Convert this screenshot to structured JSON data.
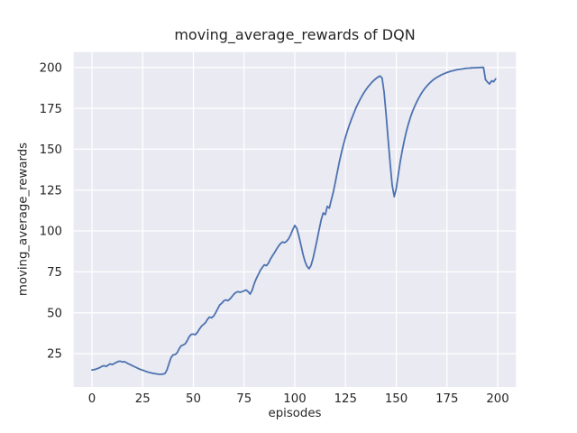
{
  "chart_data": {
    "type": "line",
    "title": "moving_average_rewards of DQN",
    "xlabel": "episodes",
    "ylabel": "moving_average_rewards",
    "xticks": [
      0,
      25,
      50,
      75,
      100,
      125,
      150,
      175,
      200
    ],
    "yticks": [
      25,
      50,
      75,
      100,
      125,
      150,
      175,
      200
    ],
    "xlim": [
      -9,
      209
    ],
    "ylim": [
      4.6,
      209.4
    ],
    "grid": true,
    "legend": "none",
    "colors": {
      "line": "#4C72B0",
      "plot_bg": "#EAEAF2",
      "grid": "#FFFFFF",
      "text": "#262626",
      "figure_bg": "#FFFFFF"
    },
    "series": [
      {
        "name": "DQN moving average reward",
        "points": [
          [
            0,
            15
          ],
          [
            1,
            15.2
          ],
          [
            2,
            15.5
          ],
          [
            3,
            16
          ],
          [
            4,
            16.5
          ],
          [
            5,
            17.3
          ],
          [
            6,
            17.6
          ],
          [
            7,
            17.2
          ],
          [
            8,
            18
          ],
          [
            9,
            18.7
          ],
          [
            10,
            18.3
          ],
          [
            11,
            19
          ],
          [
            12,
            19.6
          ],
          [
            13,
            20.2
          ],
          [
            14,
            20.4
          ],
          [
            15,
            19.9
          ],
          [
            16,
            20.1
          ],
          [
            17,
            19.5
          ],
          [
            18,
            18.8
          ],
          [
            19,
            18.2
          ],
          [
            20,
            17.6
          ],
          [
            21,
            17
          ],
          [
            22,
            16.4
          ],
          [
            23,
            15.8
          ],
          [
            24,
            15.3
          ],
          [
            25,
            14.9
          ],
          [
            26,
            14.4
          ],
          [
            27,
            14
          ],
          [
            28,
            13.6
          ],
          [
            29,
            13.3
          ],
          [
            30,
            13
          ],
          [
            31,
            12.8
          ],
          [
            32,
            12.6
          ],
          [
            33,
            12.4
          ],
          [
            34,
            12.4
          ],
          [
            35,
            12.5
          ],
          [
            36,
            12.8
          ],
          [
            37,
            15
          ],
          [
            38,
            19
          ],
          [
            39,
            22.5
          ],
          [
            40,
            24.3
          ],
          [
            41,
            24.4
          ],
          [
            42,
            25.5
          ],
          [
            43,
            28
          ],
          [
            44,
            29.8
          ],
          [
            45,
            30.3
          ],
          [
            46,
            31
          ],
          [
            47,
            33
          ],
          [
            48,
            35.5
          ],
          [
            49,
            36.8
          ],
          [
            50,
            36.9
          ],
          [
            51,
            36.6
          ],
          [
            52,
            38
          ],
          [
            53,
            40
          ],
          [
            54,
            41.8
          ],
          [
            55,
            42.8
          ],
          [
            56,
            44
          ],
          [
            57,
            46
          ],
          [
            58,
            47.4
          ],
          [
            59,
            46.9
          ],
          [
            60,
            48
          ],
          [
            61,
            50
          ],
          [
            62,
            52.4
          ],
          [
            63,
            54.8
          ],
          [
            64,
            55.8
          ],
          [
            65,
            57.3
          ],
          [
            66,
            57.9
          ],
          [
            67,
            57.4
          ],
          [
            68,
            58.4
          ],
          [
            69,
            59.8
          ],
          [
            70,
            61.4
          ],
          [
            71,
            62.4
          ],
          [
            72,
            62.9
          ],
          [
            73,
            62.5
          ],
          [
            74,
            62.9
          ],
          [
            75,
            63.4
          ],
          [
            76,
            63.9
          ],
          [
            77,
            62.9
          ],
          [
            78,
            61.4
          ],
          [
            79,
            63.8
          ],
          [
            80,
            67.8
          ],
          [
            81,
            70.8
          ],
          [
            82,
            73.3
          ],
          [
            83,
            75.8
          ],
          [
            84,
            77.8
          ],
          [
            85,
            79.3
          ],
          [
            86,
            78.8
          ],
          [
            87,
            80.3
          ],
          [
            88,
            82.8
          ],
          [
            89,
            84.8
          ],
          [
            90,
            86.8
          ],
          [
            91,
            88.8
          ],
          [
            92,
            90.8
          ],
          [
            93,
            92.3
          ],
          [
            94,
            93.3
          ],
          [
            95,
            92.8
          ],
          [
            96,
            93.8
          ],
          [
            97,
            95.3
          ],
          [
            98,
            97.8
          ],
          [
            99,
            100.8
          ],
          [
            100,
            103.4
          ],
          [
            101,
            101.4
          ],
          [
            102,
            96.9
          ],
          [
            103,
            91.4
          ],
          [
            104,
            85.9
          ],
          [
            105,
            81.4
          ],
          [
            106,
            78.4
          ],
          [
            107,
            76.9
          ],
          [
            108,
            78.9
          ],
          [
            109,
            83.4
          ],
          [
            110,
            88.9
          ],
          [
            111,
            94.9
          ],
          [
            112,
            100.9
          ],
          [
            113,
            106.9
          ],
          [
            114,
            111
          ],
          [
            115,
            110
          ],
          [
            116,
            115
          ],
          [
            117,
            114
          ],
          [
            118,
            119
          ],
          [
            119,
            124
          ],
          [
            120,
            130
          ],
          [
            121,
            136.5
          ],
          [
            122,
            142.5
          ],
          [
            123,
            148
          ],
          [
            124,
            153
          ],
          [
            125,
            157.5
          ],
          [
            126,
            161.5
          ],
          [
            127,
            165.2
          ],
          [
            128,
            168.6
          ],
          [
            129,
            171.8
          ],
          [
            130,
            174.8
          ],
          [
            131,
            177.5
          ],
          [
            132,
            180
          ],
          [
            133,
            182.3
          ],
          [
            134,
            184.4
          ],
          [
            135,
            186.3
          ],
          [
            136,
            188
          ],
          [
            137,
            189.5
          ],
          [
            138,
            190.9
          ],
          [
            139,
            192.1
          ],
          [
            140,
            193.2
          ],
          [
            141,
            194.1
          ],
          [
            142,
            194.8
          ],
          [
            143,
            193.5
          ],
          [
            144,
            185
          ],
          [
            145,
            171
          ],
          [
            146,
            156
          ],
          [
            147,
            141
          ],
          [
            148,
            128
          ],
          [
            149,
            121
          ],
          [
            150,
            126
          ],
          [
            151,
            134.5
          ],
          [
            152,
            142.5
          ],
          [
            153,
            149.5
          ],
          [
            154,
            155.5
          ],
          [
            155,
            161
          ],
          [
            156,
            165.5
          ],
          [
            157,
            169.5
          ],
          [
            158,
            173
          ],
          [
            159,
            176
          ],
          [
            160,
            178.7
          ],
          [
            161,
            181.1
          ],
          [
            162,
            183.3
          ],
          [
            163,
            185.3
          ],
          [
            164,
            187
          ],
          [
            165,
            188.5
          ],
          [
            166,
            189.9
          ],
          [
            167,
            191.1
          ],
          [
            168,
            192.2
          ],
          [
            169,
            193.1
          ],
          [
            170,
            193.9
          ],
          [
            171,
            194.6
          ],
          [
            172,
            195.3
          ],
          [
            173,
            195.9
          ],
          [
            174,
            196.4
          ],
          [
            175,
            196.9
          ],
          [
            176,
            197.3
          ],
          [
            177,
            197.7
          ],
          [
            178,
            198
          ],
          [
            179,
            198.3
          ],
          [
            180,
            198.6
          ],
          [
            181,
            198.8
          ],
          [
            182,
            199
          ],
          [
            183,
            199.2
          ],
          [
            184,
            199.4
          ],
          [
            185,
            199.5
          ],
          [
            186,
            199.6
          ],
          [
            187,
            199.7
          ],
          [
            188,
            199.8
          ],
          [
            189,
            199.8
          ],
          [
            190,
            199.9
          ],
          [
            191,
            199.9
          ],
          [
            192,
            200
          ],
          [
            193,
            200
          ],
          [
            194,
            192.5
          ],
          [
            195,
            191
          ],
          [
            196,
            189.9
          ],
          [
            197,
            191.8
          ],
          [
            198,
            191.2
          ],
          [
            199,
            193
          ]
        ]
      }
    ]
  }
}
